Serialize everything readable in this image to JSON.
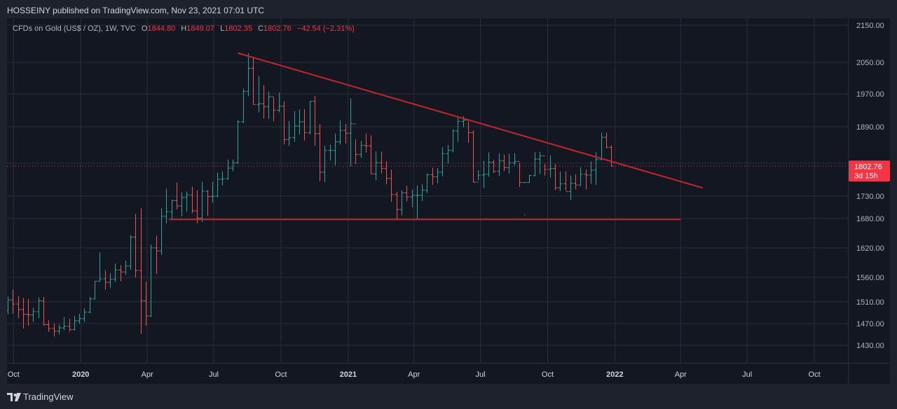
{
  "publisher": "HOSSEINY published on TradingView.com, Nov 23, 2021 07:01 UTC",
  "brand": "TradingView",
  "legend": {
    "symbol": "CFDs on Gold (US$ / OZ), 1W, TVC",
    "open_label": "O",
    "open": "1844.80",
    "high_label": "H",
    "high": "1849.07",
    "low_label": "L",
    "low": "1802.35",
    "close_label": "C",
    "close": "1802.76",
    "change": "−42.54 (−2.31%)"
  },
  "price_tag": {
    "value": "1802.76",
    "countdown": "3d 15h"
  },
  "colors": {
    "background": "#131722",
    "up": "#26a69a",
    "down": "#ef5350",
    "trendline": "#c2252d",
    "grid": "#2a2e39",
    "price_tag": "#f23645"
  },
  "chart_data": {
    "type": "ohlc",
    "timeframe": "1W",
    "y_axis_ticks": [
      2150.0,
      2050.0,
      1970.0,
      1890.0,
      1810.0,
      1730.0,
      1680.0,
      1620.0,
      1560.0,
      1510.0,
      1470.0,
      1430.0
    ],
    "x_axis_ticks": [
      {
        "label": "Oct",
        "date": "2019-10-01"
      },
      {
        "label": "2020",
        "date": "2020-01-01",
        "bold": true
      },
      {
        "label": "Apr",
        "date": "2020-04-01"
      },
      {
        "label": "Jul",
        "date": "2020-07-01"
      },
      {
        "label": "Oct",
        "date": "2020-10-01"
      },
      {
        "label": "2021",
        "date": "2021-01-01",
        "bold": true
      },
      {
        "label": "Apr",
        "date": "2021-04-01"
      },
      {
        "label": "Jul",
        "date": "2021-07-01"
      },
      {
        "label": "Oct",
        "date": "2021-10-01"
      },
      {
        "label": "2022",
        "date": "2022-01-01",
        "bold": true
      },
      {
        "label": "Apr",
        "date": "2022-04-01"
      },
      {
        "label": "Jul",
        "date": "2022-07-01"
      },
      {
        "label": "Oct",
        "date": "2022-10-01"
      }
    ],
    "y_range": [
      1400,
      2175
    ],
    "x_range": [
      "2019-09-01",
      "2022-11-15"
    ],
    "grid": true,
    "last_price": 1802.76,
    "trendlines": [
      {
        "name": "descending resistance",
        "from": {
          "date": "2020-08-03",
          "price": 2075
        },
        "to": {
          "date": "2022-05-01",
          "price": 1750
        }
      },
      {
        "name": "horizontal support",
        "from": {
          "date": "2020-05-01",
          "price": 1678
        },
        "to": {
          "date": "2022-04-01",
          "price": 1678
        }
      }
    ],
    "first_week": "2019-09-02",
    "bars": [
      [
        1521,
        1556,
        1503,
        1517
      ],
      [
        1517,
        1532,
        1496,
        1508
      ],
      [
        1508,
        1529,
        1485,
        1494
      ],
      [
        1494,
        1521,
        1487,
        1514
      ],
      [
        1514,
        1535,
        1488,
        1506
      ],
      [
        1506,
        1521,
        1480,
        1496
      ],
      [
        1496,
        1518,
        1461,
        1487
      ],
      [
        1487,
        1516,
        1466,
        1486
      ],
      [
        1486,
        1499,
        1473,
        1492
      ],
      [
        1492,
        1519,
        1480,
        1512
      ],
      [
        1512,
        1520,
        1466,
        1468
      ],
      [
        1468,
        1476,
        1455,
        1461
      ],
      [
        1461,
        1470,
        1446,
        1456
      ],
      [
        1456,
        1468,
        1450,
        1462
      ],
      [
        1462,
        1482,
        1458,
        1465
      ],
      [
        1465,
        1479,
        1455,
        1459
      ],
      [
        1459,
        1484,
        1457,
        1475
      ],
      [
        1475,
        1488,
        1470,
        1479
      ],
      [
        1479,
        1498,
        1473,
        1491
      ],
      [
        1491,
        1520,
        1489,
        1516
      ],
      [
        1516,
        1552,
        1515,
        1552
      ],
      [
        1552,
        1611,
        1551,
        1557
      ],
      [
        1557,
        1574,
        1535,
        1550
      ],
      [
        1550,
        1568,
        1539,
        1556
      ],
      [
        1556,
        1588,
        1551,
        1575
      ],
      [
        1575,
        1585,
        1552,
        1571
      ],
      [
        1571,
        1594,
        1565,
        1583
      ],
      [
        1583,
        1646,
        1575,
        1642
      ],
      [
        1642,
        1690,
        1560,
        1574
      ],
      [
        1574,
        1703,
        1451,
        1512
      ],
      [
        1512,
        1551,
        1466,
        1484
      ],
      [
        1484,
        1627,
        1482,
        1620
      ],
      [
        1620,
        1645,
        1567,
        1614
      ],
      [
        1614,
        1703,
        1606,
        1685
      ],
      [
        1685,
        1748,
        1670,
        1695
      ],
      [
        1695,
        1722,
        1680,
        1720
      ],
      [
        1720,
        1763,
        1700,
        1708
      ],
      [
        1708,
        1739,
        1685,
        1727
      ],
      [
        1727,
        1741,
        1695,
        1733
      ],
      [
        1733,
        1753,
        1692,
        1697
      ],
      [
        1697,
        1744,
        1670,
        1681
      ],
      [
        1681,
        1765,
        1673,
        1742
      ],
      [
        1742,
        1744,
        1686,
        1729
      ],
      [
        1729,
        1765,
        1715,
        1730
      ],
      [
        1730,
        1787,
        1727,
        1771
      ],
      [
        1771,
        1790,
        1756,
        1772
      ],
      [
        1772,
        1818,
        1770,
        1798
      ],
      [
        1798,
        1818,
        1790,
        1811
      ],
      [
        1811,
        1906,
        1808,
        1902
      ],
      [
        1902,
        1983,
        1899,
        1976
      ],
      [
        1976,
        2075,
        1964,
        2035
      ],
      [
        2035,
        2063,
        1944,
        1944
      ],
      [
        1944,
        2015,
        1925,
        1946
      ],
      [
        1946,
        1992,
        1910,
        1939
      ],
      [
        1939,
        1976,
        1909,
        1963
      ],
      [
        1963,
        1961,
        1903,
        1930
      ],
      [
        1930,
        1973,
        1925,
        1940
      ],
      [
        1940,
        1952,
        1851,
        1862
      ],
      [
        1862,
        1904,
        1848,
        1866
      ],
      [
        1866,
        1928,
        1857,
        1892
      ],
      [
        1892,
        1932,
        1873,
        1902
      ],
      [
        1902,
        1933,
        1860,
        1877
      ],
      [
        1877,
        1952,
        1873,
        1952
      ],
      [
        1952,
        1965,
        1848,
        1875
      ],
      [
        1875,
        1896,
        1766,
        1788
      ],
      [
        1788,
        1848,
        1764,
        1838
      ],
      [
        1838,
        1851,
        1816,
        1838
      ],
      [
        1838,
        1875,
        1805,
        1857
      ],
      [
        1857,
        1906,
        1851,
        1882
      ],
      [
        1882,
        1897,
        1853,
        1876
      ],
      [
        1876,
        1959,
        1802,
        1897
      ],
      [
        1897,
        1862,
        1808,
        1829
      ],
      [
        1829,
        1859,
        1822,
        1849
      ],
      [
        1849,
        1875,
        1833,
        1848
      ],
      [
        1848,
        1871,
        1784,
        1784
      ],
      [
        1784,
        1836,
        1768,
        1811
      ],
      [
        1811,
        1835,
        1785,
        1797
      ],
      [
        1797,
        1814,
        1759,
        1773
      ],
      [
        1773,
        1794,
        1717,
        1734
      ],
      [
        1734,
        1740,
        1677,
        1700
      ],
      [
        1700,
        1744,
        1687,
        1738
      ],
      [
        1738,
        1755,
        1718,
        1728
      ],
      [
        1728,
        1746,
        1705,
        1732
      ],
      [
        1732,
        1756,
        1678,
        1732
      ],
      [
        1732,
        1759,
        1719,
        1744
      ],
      [
        1744,
        1785,
        1738,
        1782
      ],
      [
        1782,
        1799,
        1757,
        1777
      ],
      [
        1777,
        1798,
        1761,
        1788
      ],
      [
        1788,
        1845,
        1778,
        1831
      ],
      [
        1831,
        1850,
        1809,
        1838
      ],
      [
        1838,
        1884,
        1834,
        1881
      ],
      [
        1881,
        1912,
        1857,
        1903
      ],
      [
        1903,
        1916,
        1889,
        1906
      ],
      [
        1906,
        1903,
        1855,
        1877
      ],
      [
        1877,
        1882,
        1763,
        1764
      ],
      [
        1764,
        1793,
        1769,
        1781
      ],
      [
        1781,
        1815,
        1750,
        1783
      ],
      [
        1783,
        1834,
        1777,
        1812
      ],
      [
        1812,
        1817,
        1786,
        1790
      ],
      [
        1790,
        1832,
        1779,
        1815
      ],
      [
        1815,
        1829,
        1791,
        1799
      ],
      [
        1799,
        1831,
        1785,
        1811
      ],
      [
        1811,
        1832,
        1805,
        1814
      ],
      [
        1814,
        1811,
        1752,
        1763
      ],
      [
        1763,
        1689,
        1687,
        1763
      ],
      [
        1763,
        1782,
        1762,
        1780
      ],
      [
        1780,
        1834,
        1778,
        1819
      ],
      [
        1819,
        1835,
        1784,
        1826
      ],
      [
        1826,
        1808,
        1780,
        1795
      ],
      [
        1795,
        1827,
        1775,
        1797
      ],
      [
        1797,
        1808,
        1745,
        1750
      ],
      [
        1750,
        1790,
        1742,
        1760
      ],
      [
        1760,
        1790,
        1744,
        1741
      ],
      [
        1741,
        1780,
        1721,
        1761
      ],
      [
        1761,
        1783,
        1746,
        1757
      ],
      [
        1757,
        1800,
        1755,
        1783
      ],
      [
        1783,
        1795,
        1746,
        1781
      ],
      [
        1781,
        1814,
        1760,
        1793
      ],
      [
        1793,
        1834,
        1757,
        1818
      ],
      [
        1818,
        1877,
        1817,
        1867
      ],
      [
        1867,
        1877,
        1843,
        1845
      ],
      [
        1844.8,
        1849.07,
        1802.35,
        1802.76
      ]
    ]
  },
  "axis_labels": [
    "2150.00",
    "2050.00",
    "1970.00",
    "1890.00",
    "1810.00",
    "1730.00",
    "1680.00",
    "1620.00",
    "1560.00",
    "1510.00",
    "1470.00",
    "1430.00"
  ]
}
